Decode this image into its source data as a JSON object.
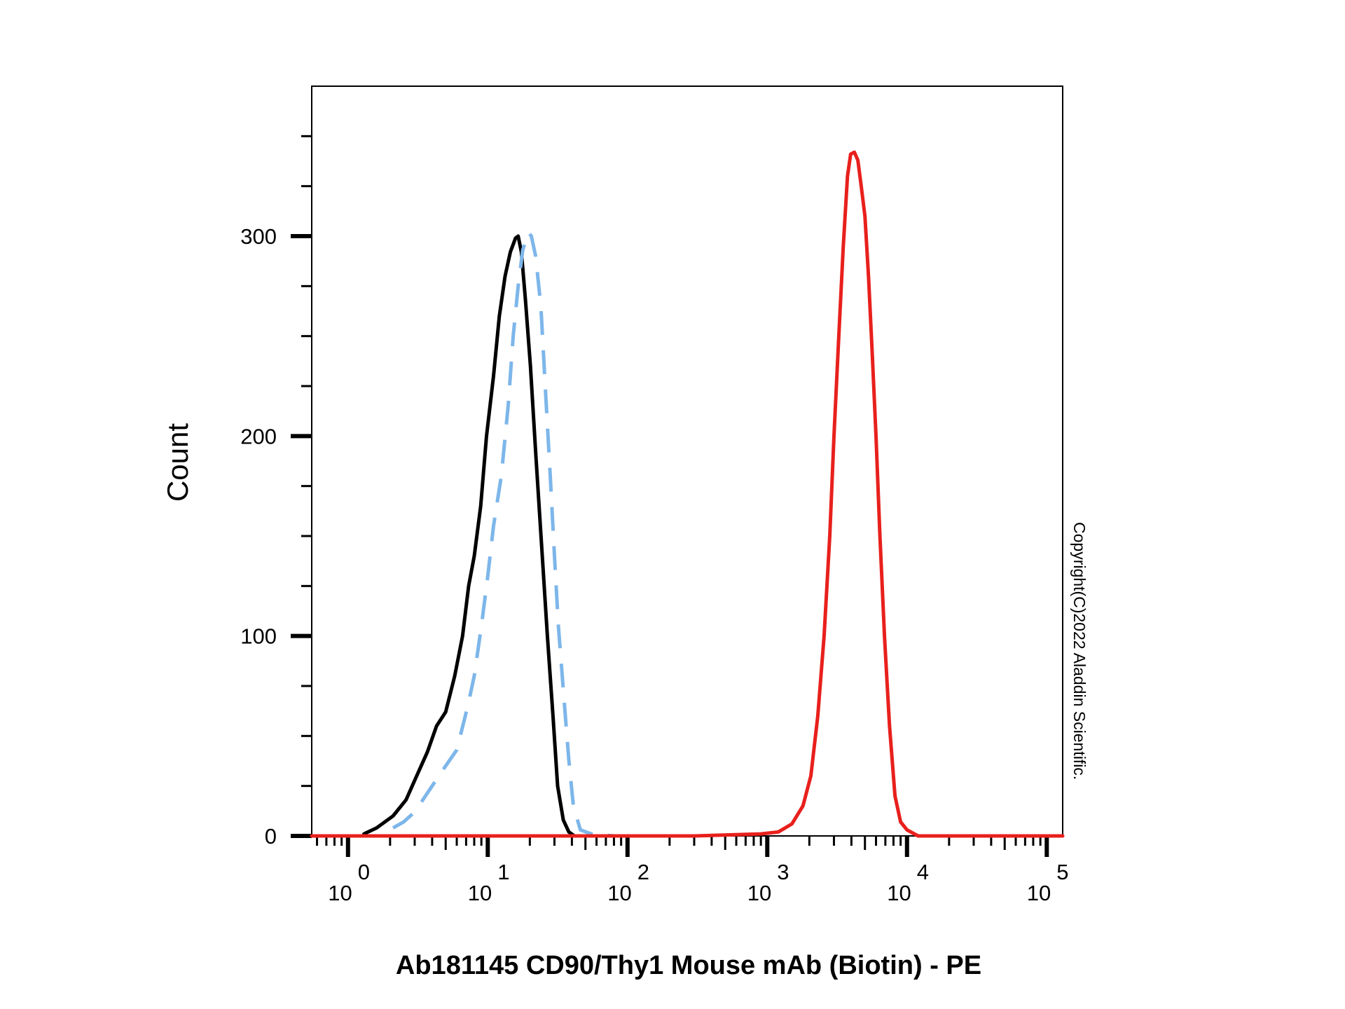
{
  "chart_data": {
    "type": "line",
    "xlabel": "Ab181145 CD90/Thy1 Mouse mAb (Biotin) - PE",
    "ylabel": "Count",
    "x_scale": "log",
    "xlim": [
      0.55,
      130000
    ],
    "ylim": [
      0,
      375
    ],
    "y_ticks": [
      {
        "value": 0,
        "label": "0"
      },
      {
        "value": 100,
        "label": "100"
      },
      {
        "value": 200,
        "label": "200"
      },
      {
        "value": 300,
        "label": "300"
      }
    ],
    "x_ticks": [
      {
        "value": 1,
        "base": "10",
        "exp": "0"
      },
      {
        "value": 10,
        "base": "10",
        "exp": "1"
      },
      {
        "value": 100,
        "base": "10",
        "exp": "2"
      },
      {
        "value": 1000,
        "base": "10",
        "exp": "3"
      },
      {
        "value": 10000,
        "base": "10",
        "exp": "4"
      },
      {
        "value": 100000,
        "base": "10",
        "exp": "5"
      }
    ],
    "grid": false,
    "series": [
      {
        "color": "#000000",
        "style": "solid",
        "points": [
          [
            1.3,
            1
          ],
          [
            1.6,
            4
          ],
          [
            2.1,
            10
          ],
          [
            2.6,
            18
          ],
          [
            3.1,
            30
          ],
          [
            3.7,
            42
          ],
          [
            4.3,
            55
          ],
          [
            5.0,
            62
          ],
          [
            5.8,
            80
          ],
          [
            6.6,
            100
          ],
          [
            7.3,
            125
          ],
          [
            8.0,
            140
          ],
          [
            8.9,
            165
          ],
          [
            9.8,
            200
          ],
          [
            11.0,
            230
          ],
          [
            12.1,
            260
          ],
          [
            13.3,
            280
          ],
          [
            14.5,
            292
          ],
          [
            15.8,
            299
          ],
          [
            16.5,
            300
          ],
          [
            17.4,
            292
          ],
          [
            18.6,
            268
          ],
          [
            20.2,
            235
          ],
          [
            22.1,
            190
          ],
          [
            24.3,
            145
          ],
          [
            26.7,
            100
          ],
          [
            29.3,
            60
          ],
          [
            31.6,
            25
          ],
          [
            34.7,
            8
          ],
          [
            38.0,
            2
          ],
          [
            41.7,
            0
          ]
        ]
      },
      {
        "color": "#7db6ea",
        "style": "dashed",
        "points": [
          [
            2.1,
            4
          ],
          [
            2.5,
            7
          ],
          [
            3.0,
            12
          ],
          [
            4.0,
            25
          ],
          [
            5.0,
            35
          ],
          [
            6.0,
            43
          ],
          [
            7.2,
            65
          ],
          [
            8.0,
            80
          ],
          [
            9.0,
            105
          ],
          [
            10.0,
            130
          ],
          [
            11.0,
            155
          ],
          [
            12.5,
            180
          ],
          [
            14.0,
            215
          ],
          [
            15.2,
            250
          ],
          [
            16.5,
            275
          ],
          [
            17.8,
            293
          ],
          [
            19.5,
            302
          ],
          [
            20.5,
            300
          ],
          [
            22.0,
            290
          ],
          [
            24.0,
            265
          ],
          [
            26.0,
            220
          ],
          [
            28.0,
            180
          ],
          [
            30.0,
            140
          ],
          [
            32.0,
            105
          ],
          [
            35.0,
            70
          ],
          [
            38.0,
            38
          ],
          [
            41.0,
            15
          ],
          [
            46.0,
            3
          ],
          [
            55.0,
            1
          ],
          [
            80.0,
            0
          ]
        ]
      },
      {
        "color": "#e8201c",
        "style": "solid",
        "points": [
          [
            0.55,
            0
          ],
          [
            300,
            0
          ],
          [
            900,
            1
          ],
          [
            1200,
            2
          ],
          [
            1500,
            6
          ],
          [
            1800,
            15
          ],
          [
            2050,
            30
          ],
          [
            2300,
            60
          ],
          [
            2550,
            100
          ],
          [
            2800,
            150
          ],
          [
            3000,
            200
          ],
          [
            3250,
            250
          ],
          [
            3500,
            295
          ],
          [
            3750,
            330
          ],
          [
            3950,
            341
          ],
          [
            4200,
            342
          ],
          [
            4450,
            338
          ],
          [
            4700,
            325
          ],
          [
            5000,
            310
          ],
          [
            5300,
            280
          ],
          [
            5650,
            240
          ],
          [
            6000,
            200
          ],
          [
            6400,
            150
          ],
          [
            6900,
            100
          ],
          [
            7500,
            55
          ],
          [
            8200,
            20
          ],
          [
            9000,
            7
          ],
          [
            10000,
            3
          ],
          [
            12000,
            0
          ],
          [
            130000,
            0
          ]
        ]
      }
    ]
  },
  "copyright": "Copyright(C)2022 Aladdin Scientific."
}
